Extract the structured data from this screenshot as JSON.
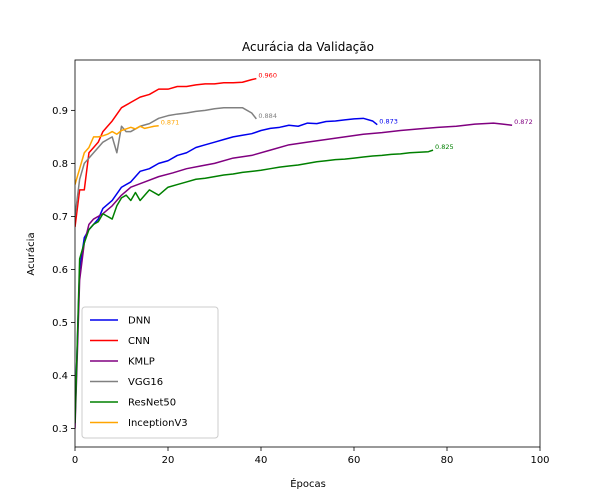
{
  "chart_data": {
    "type": "line",
    "title": "Acurácia da Validação",
    "xlabel": "Épocas",
    "ylabel": "Acurácia",
    "xlim": [
      0,
      100
    ],
    "ylim": [
      0.265,
      0.995
    ],
    "xticks": [
      0,
      20,
      40,
      60,
      80,
      100
    ],
    "yticks": [
      0.3,
      0.4,
      0.5,
      0.6,
      0.7,
      0.8,
      0.9
    ],
    "grid": false,
    "legend": "lower-left",
    "series": [
      {
        "name": "DNN",
        "color": "#0000ee",
        "final_label": "0.873",
        "x": [
          0,
          1,
          2,
          3,
          4,
          5,
          6,
          8,
          10,
          12,
          14,
          16,
          18,
          20,
          22,
          24,
          26,
          28,
          30,
          32,
          34,
          36,
          38,
          40,
          42,
          44,
          46,
          48,
          50,
          52,
          54,
          56,
          58,
          60,
          62,
          64,
          65
        ],
        "y": [
          0.32,
          0.6,
          0.66,
          0.675,
          0.685,
          0.695,
          0.715,
          0.73,
          0.755,
          0.765,
          0.785,
          0.79,
          0.8,
          0.805,
          0.815,
          0.82,
          0.83,
          0.835,
          0.84,
          0.845,
          0.85,
          0.853,
          0.856,
          0.862,
          0.866,
          0.868,
          0.872,
          0.87,
          0.876,
          0.875,
          0.879,
          0.88,
          0.882,
          0.884,
          0.885,
          0.88,
          0.873
        ]
      },
      {
        "name": "CNN",
        "color": "#ff0000",
        "final_label": "0.960",
        "x": [
          0,
          1,
          2,
          3,
          4,
          5,
          6,
          8,
          10,
          12,
          14,
          16,
          18,
          20,
          22,
          24,
          26,
          28,
          30,
          32,
          34,
          36,
          38,
          39
        ],
        "y": [
          0.68,
          0.75,
          0.75,
          0.82,
          0.83,
          0.84,
          0.86,
          0.88,
          0.905,
          0.915,
          0.925,
          0.93,
          0.94,
          0.94,
          0.945,
          0.945,
          0.948,
          0.95,
          0.95,
          0.952,
          0.952,
          0.953,
          0.958,
          0.96
        ]
      },
      {
        "name": "KMLP",
        "color": "#800080",
        "final_label": "0.872",
        "x": [
          0,
          1,
          2,
          3,
          4,
          6,
          8,
          10,
          12,
          15,
          18,
          21,
          24,
          27,
          30,
          34,
          38,
          42,
          46,
          50,
          54,
          58,
          62,
          66,
          70,
          74,
          78,
          82,
          86,
          90,
          92,
          94
        ],
        "y": [
          0.3,
          0.58,
          0.65,
          0.685,
          0.695,
          0.705,
          0.72,
          0.74,
          0.755,
          0.765,
          0.775,
          0.782,
          0.79,
          0.795,
          0.8,
          0.81,
          0.815,
          0.825,
          0.835,
          0.84,
          0.845,
          0.85,
          0.855,
          0.858,
          0.862,
          0.865,
          0.868,
          0.87,
          0.874,
          0.876,
          0.874,
          0.872
        ]
      },
      {
        "name": "VGG16",
        "color": "#808080",
        "final_label": "0.884",
        "x": [
          0,
          1,
          2,
          3,
          4,
          5,
          6,
          7,
          8,
          9,
          10,
          11,
          12,
          14,
          16,
          18,
          20,
          22,
          24,
          26,
          28,
          30,
          32,
          34,
          36,
          38,
          39
        ],
        "y": [
          0.7,
          0.77,
          0.8,
          0.81,
          0.82,
          0.83,
          0.84,
          0.845,
          0.85,
          0.82,
          0.87,
          0.86,
          0.86,
          0.87,
          0.875,
          0.885,
          0.89,
          0.893,
          0.895,
          0.898,
          0.9,
          0.903,
          0.905,
          0.905,
          0.905,
          0.895,
          0.884
        ]
      },
      {
        "name": "ResNet50",
        "color": "#008000",
        "final_label": "0.825",
        "x": [
          0,
          1,
          2,
          3,
          4,
          5,
          6,
          7,
          8,
          9,
          10,
          11,
          12,
          13,
          14,
          16,
          18,
          20,
          22,
          24,
          26,
          28,
          30,
          32,
          34,
          36,
          38,
          40,
          42,
          44,
          46,
          48,
          50,
          52,
          54,
          56,
          58,
          60,
          62,
          64,
          66,
          68,
          70,
          72,
          74,
          76,
          77
        ],
        "y": [
          0.31,
          0.62,
          0.65,
          0.675,
          0.685,
          0.69,
          0.705,
          0.7,
          0.695,
          0.72,
          0.735,
          0.74,
          0.73,
          0.745,
          0.73,
          0.75,
          0.74,
          0.755,
          0.76,
          0.765,
          0.77,
          0.772,
          0.775,
          0.778,
          0.78,
          0.783,
          0.785,
          0.787,
          0.79,
          0.793,
          0.795,
          0.797,
          0.8,
          0.803,
          0.805,
          0.807,
          0.808,
          0.81,
          0.812,
          0.814,
          0.815,
          0.817,
          0.818,
          0.82,
          0.821,
          0.822,
          0.825
        ]
      },
      {
        "name": "InceptionV3",
        "color": "#ffa500",
        "final_label": "0.871",
        "x": [
          0,
          1,
          2,
          3,
          4,
          5,
          6,
          7,
          8,
          9,
          10,
          11,
          12,
          13,
          14,
          15,
          16,
          17,
          18
        ],
        "y": [
          0.76,
          0.79,
          0.82,
          0.83,
          0.85,
          0.85,
          0.852,
          0.855,
          0.86,
          0.855,
          0.862,
          0.865,
          0.868,
          0.865,
          0.87,
          0.866,
          0.868,
          0.87,
          0.871
        ]
      }
    ]
  }
}
